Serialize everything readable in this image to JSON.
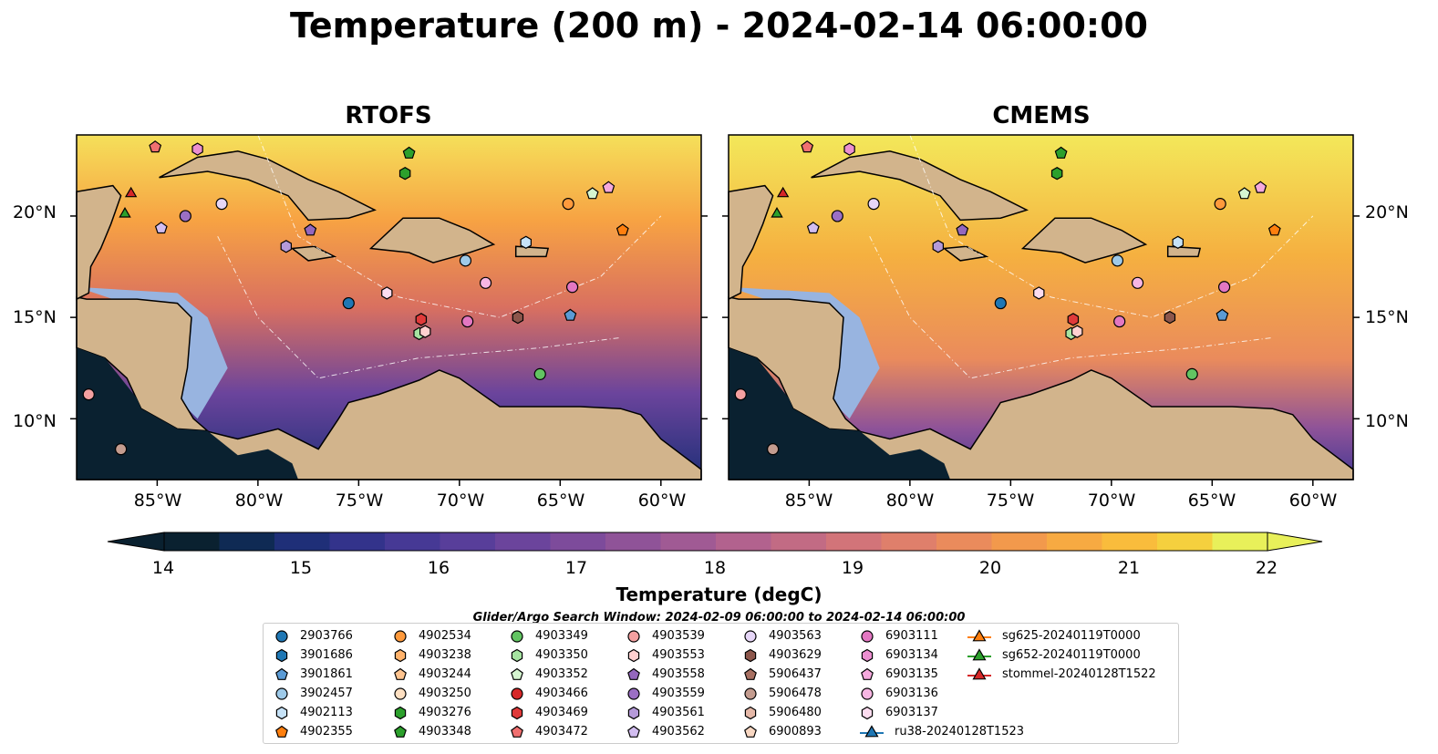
{
  "title": "Temperature (200 m) - 2024-02-14 06:00:00",
  "panels": [
    {
      "title": "RTOFS"
    },
    {
      "title": "CMEMS"
    }
  ],
  "axes": {
    "x_ticks": [
      "85°W",
      "80°W",
      "75°W",
      "70°W",
      "65°W",
      "60°W"
    ],
    "y_ticks": [
      "20°N",
      "15°N",
      "10°N"
    ],
    "lon_range": [
      -89,
      -58
    ],
    "lat_range": [
      7,
      24
    ]
  },
  "colorbar": {
    "label": "Temperature (degC)",
    "ticks": [
      "14",
      "15",
      "16",
      "17",
      "18",
      "19",
      "20",
      "21",
      "22"
    ],
    "range": [
      14,
      22
    ],
    "extend": "both",
    "colors": [
      "#0a2130",
      "#0f2a54",
      "#1f2f78",
      "#33338b",
      "#463995",
      "#583e9a",
      "#6b449c",
      "#7d4b9b",
      "#8f5398",
      "#a05a94",
      "#b2628e",
      "#c26b84",
      "#d27479",
      "#df7f6b",
      "#ea8b5c",
      "#f2994c",
      "#f7aa42",
      "#f9bc3c",
      "#f5d03e",
      "#e8f05a"
    ]
  },
  "search_window": "Glider/Argo Search Window: 2024-02-09 06:00:00 to 2024-02-14 06:00:00",
  "legend": {
    "items": [
      {
        "label": "2903766",
        "marker": "circle",
        "color": "#1f77b4"
      },
      {
        "label": "3901686",
        "marker": "hexagon",
        "color": "#1f77b4"
      },
      {
        "label": "3901861",
        "marker": "pentagon",
        "color": "#5b9bd5"
      },
      {
        "label": "3902457",
        "marker": "circle",
        "color": "#9ecae9"
      },
      {
        "label": "4902113",
        "marker": "hexagon",
        "color": "#c6e2f7"
      },
      {
        "label": "4902355",
        "marker": "pentagon",
        "color": "#ff7f0e"
      },
      {
        "label": "4902534",
        "marker": "circle",
        "color": "#ff9a3c"
      },
      {
        "label": "4903238",
        "marker": "hexagon",
        "color": "#ffb26b"
      },
      {
        "label": "4903244",
        "marker": "pentagon",
        "color": "#ffc48f"
      },
      {
        "label": "4903250",
        "marker": "circle",
        "color": "#ffe0c2"
      },
      {
        "label": "4903276",
        "marker": "hexagon",
        "color": "#2ca02c"
      },
      {
        "label": "4903348",
        "marker": "pentagon",
        "color": "#2ca02c"
      },
      {
        "label": "4903349",
        "marker": "circle",
        "color": "#62c462"
      },
      {
        "label": "4903350",
        "marker": "hexagon",
        "color": "#a6e3a1"
      },
      {
        "label": "4903352",
        "marker": "pentagon",
        "color": "#d5f5d0"
      },
      {
        "label": "4903466",
        "marker": "circle",
        "color": "#d62728"
      },
      {
        "label": "4903469",
        "marker": "hexagon",
        "color": "#e03a3a"
      },
      {
        "label": "4903472",
        "marker": "pentagon",
        "color": "#f07070"
      },
      {
        "label": "4903539",
        "marker": "circle",
        "color": "#f4a0a0"
      },
      {
        "label": "4903553",
        "marker": "hexagon",
        "color": "#ffd0d0"
      },
      {
        "label": "4903558",
        "marker": "pentagon",
        "color": "#9467bd"
      },
      {
        "label": "4903559",
        "marker": "circle",
        "color": "#9b6fc4"
      },
      {
        "label": "4903561",
        "marker": "hexagon",
        "color": "#b59ad9"
      },
      {
        "label": "4903562",
        "marker": "pentagon",
        "color": "#d2bdf0"
      },
      {
        "label": "4903563",
        "marker": "circle",
        "color": "#e6d6f7"
      },
      {
        "label": "4903629",
        "marker": "hexagon",
        "color": "#8c564b"
      },
      {
        "label": "5906437",
        "marker": "pentagon",
        "color": "#a87062"
      },
      {
        "label": "5906478",
        "marker": "circle",
        "color": "#c49c8f"
      },
      {
        "label": "5906480",
        "marker": "hexagon",
        "color": "#e5b8a8"
      },
      {
        "label": "6900893",
        "marker": "pentagon",
        "color": "#f8d7c2"
      },
      {
        "label": "6903111",
        "marker": "circle",
        "color": "#e377c2"
      },
      {
        "label": "6903134",
        "marker": "hexagon",
        "color": "#ec8fd0"
      },
      {
        "label": "6903135",
        "marker": "pentagon",
        "color": "#f5a9dd"
      },
      {
        "label": "6903136",
        "marker": "circle",
        "color": "#f7b6e3"
      },
      {
        "label": "6903137",
        "marker": "hexagon",
        "color": "#fcdcef"
      },
      {
        "label": "ru38-20240128T1523",
        "marker": "triangle-line",
        "color": "#1f77b4"
      },
      {
        "label": "sg625-20240119T0000",
        "marker": "triangle-line",
        "color": "#ff7f0e"
      },
      {
        "label": "sg652-20240119T0000",
        "marker": "triangle-line",
        "color": "#2ca02c"
      },
      {
        "label": "stommel-20240128T1522",
        "marker": "triangle-line",
        "color": "#d62728"
      }
    ]
  },
  "map_markers": [
    {
      "label": "2903766",
      "lon": -75.5,
      "lat": 15.7
    },
    {
      "label": "3901861",
      "lon": -64.5,
      "lat": 15.1
    },
    {
      "label": "3902457",
      "lon": -69.7,
      "lat": 17.8
    },
    {
      "label": "4902113",
      "lon": -66.7,
      "lat": 18.7
    },
    {
      "label": "4902355",
      "lon": -61.9,
      "lat": 19.3
    },
    {
      "label": "4902534",
      "lon": -64.6,
      "lat": 20.6
    },
    {
      "label": "4903276",
      "lon": -72.7,
      "lat": 22.1
    },
    {
      "label": "4903348",
      "lon": -72.5,
      "lat": 23.1
    },
    {
      "label": "4903349",
      "lon": -66.0,
      "lat": 12.2
    },
    {
      "label": "4903350",
      "lon": -72.0,
      "lat": 14.2
    },
    {
      "label": "4903352",
      "lon": -63.4,
      "lat": 21.1
    },
    {
      "label": "4903469",
      "lon": -71.9,
      "lat": 14.9
    },
    {
      "label": "4903472",
      "lon": -85.1,
      "lat": 23.4
    },
    {
      "label": "4903539",
      "lon": -88.4,
      "lat": 11.2
    },
    {
      "label": "4903553",
      "lon": -71.7,
      "lat": 14.3
    },
    {
      "label": "4903558",
      "lon": -77.4,
      "lat": 19.3
    },
    {
      "label": "4903559",
      "lon": -83.6,
      "lat": 20.0
    },
    {
      "label": "4903561",
      "lon": -78.6,
      "lat": 18.5
    },
    {
      "label": "4903562",
      "lon": -84.8,
      "lat": 19.4
    },
    {
      "label": "4903563",
      "lon": -81.8,
      "lat": 20.6
    },
    {
      "label": "4903629",
      "lon": -67.1,
      "lat": 15.0
    },
    {
      "label": "5906478",
      "lon": -86.8,
      "lat": 8.5
    },
    {
      "label": "6903134",
      "lon": -83.0,
      "lat": 23.3
    },
    {
      "label": "6903135",
      "lon": -62.6,
      "lat": 21.4
    },
    {
      "label": "6903136",
      "lon": -68.7,
      "lat": 16.7
    },
    {
      "label": "6903111",
      "lon": -64.4,
      "lat": 16.5
    },
    {
      "label": "6903137",
      "lon": -73.6,
      "lat": 16.2
    },
    {
      "label": "6903111",
      "lon": -69.6,
      "lat": 14.8
    },
    {
      "label": "sg652-20240119T0000",
      "lon": -86.6,
      "lat": 20.1
    },
    {
      "label": "stommel-20240128T1522",
      "lon": -86.3,
      "lat": 21.1
    }
  ]
}
